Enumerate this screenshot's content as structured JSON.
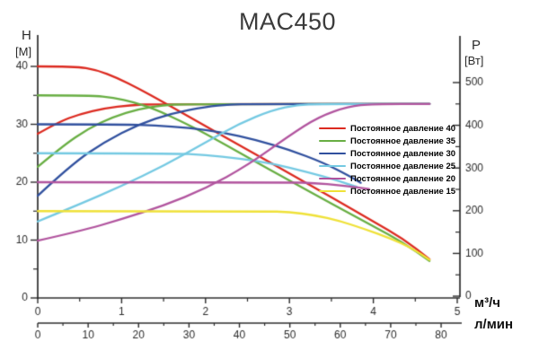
{
  "chart_data": {
    "type": "line",
    "title": "MAC450",
    "grid": false,
    "legend_position": "right-center",
    "power_limit_w": 450,
    "left_axis": {
      "label": "H",
      "unit": "[M]",
      "min": 0,
      "max": 40,
      "major_ticks": [
        0,
        10,
        20,
        30,
        40
      ],
      "minor_ticks": [
        5,
        15,
        25,
        35
      ]
    },
    "right_axis": {
      "label": "P",
      "unit": "[Вт]",
      "min": 0,
      "max": 500,
      "major_ticks": [
        0,
        100,
        200,
        300,
        400,
        500
      ],
      "minor_ticks": [
        50,
        150,
        250,
        350,
        450
      ]
    },
    "x_axis_primary": {
      "label": "м³/ч",
      "min": 0,
      "max": 5,
      "major_ticks": [
        0,
        1,
        2,
        3,
        4,
        5
      ],
      "minor_step": 0.5
    },
    "x_axis_secondary": {
      "label": "л/мин",
      "min": 0,
      "max": 80,
      "major_ticks": [
        0,
        10,
        20,
        30,
        40,
        50,
        60,
        70,
        80
      ],
      "minor_step": 5
    },
    "series": [
      {
        "name": "Постоянное давление 40",
        "pressure_setting_m": 40,
        "color": "#dc2a20",
        "h_curve": [
          [
            0,
            40
          ],
          [
            0.45,
            40
          ],
          [
            0.7,
            39.4
          ],
          [
            0.95,
            38.0
          ],
          [
            1.2,
            36.2
          ],
          [
            1.5,
            33.8
          ],
          [
            2.0,
            29.7
          ],
          [
            2.5,
            25.6
          ],
          [
            3.0,
            21.5
          ],
          [
            3.5,
            17.4
          ],
          [
            4.0,
            13.2
          ],
          [
            4.35,
            10.3
          ],
          [
            4.67,
            6.7
          ]
        ],
        "p_curve": [
          [
            0,
            380
          ],
          [
            0.25,
            408
          ],
          [
            0.5,
            426
          ],
          [
            0.8,
            440
          ],
          [
            1.1,
            447
          ],
          [
            1.4,
            450
          ],
          [
            4.67,
            450
          ]
        ]
      },
      {
        "name": "Постоянное давление 35",
        "pressure_setting_m": 35,
        "color": "#68ae43",
        "h_curve": [
          [
            0,
            35
          ],
          [
            0.65,
            35
          ],
          [
            0.9,
            34.6
          ],
          [
            1.15,
            33.8
          ],
          [
            1.4,
            32.6
          ],
          [
            1.7,
            30.6
          ],
          [
            2.0,
            28.4
          ],
          [
            2.5,
            24.3
          ],
          [
            3.0,
            20.3
          ],
          [
            3.5,
            16.3
          ],
          [
            4.0,
            12.4
          ],
          [
            4.35,
            9.6
          ],
          [
            4.67,
            6.4
          ]
        ],
        "p_curve": [
          [
            0,
            303
          ],
          [
            0.3,
            352
          ],
          [
            0.6,
            392
          ],
          [
            0.9,
            420
          ],
          [
            1.2,
            438
          ],
          [
            1.5,
            447
          ],
          [
            1.75,
            450
          ],
          [
            4.67,
            450
          ]
        ]
      },
      {
        "name": "Постоянное давление 30",
        "pressure_setting_m": 30,
        "color": "#30509e",
        "h_curve": [
          [
            0,
            30
          ],
          [
            1.0,
            30
          ],
          [
            1.4,
            29.8
          ],
          [
            1.8,
            29.4
          ],
          [
            2.2,
            28.6
          ],
          [
            2.6,
            27.3
          ],
          [
            3.0,
            25.6
          ],
          [
            3.4,
            23.4
          ],
          [
            3.7,
            21.2
          ],
          [
            3.85,
            19.9
          ]
        ],
        "p_curve": [
          [
            0,
            235
          ],
          [
            0.4,
            308
          ],
          [
            0.8,
            362
          ],
          [
            1.2,
            402
          ],
          [
            1.6,
            428
          ],
          [
            2.0,
            443
          ],
          [
            2.3,
            449
          ],
          [
            2.55,
            450
          ],
          [
            4.67,
            450
          ]
        ]
      },
      {
        "name": "Постоянное давление 25",
        "pressure_setting_m": 25,
        "color": "#74c9e2",
        "h_curve": [
          [
            0,
            25
          ],
          [
            1.6,
            25
          ],
          [
            2.0,
            24.7
          ],
          [
            2.4,
            24.1
          ],
          [
            2.8,
            23.2
          ],
          [
            3.2,
            21.8
          ],
          [
            3.55,
            20.4
          ],
          [
            3.8,
            19.2
          ]
        ],
        "p_curve": [
          [
            0,
            175
          ],
          [
            0.5,
            215
          ],
          [
            1.0,
            258
          ],
          [
            1.5,
            305
          ],
          [
            2.0,
            360
          ],
          [
            2.4,
            404
          ],
          [
            2.8,
            436
          ],
          [
            3.1,
            448
          ],
          [
            3.35,
            450
          ],
          [
            4.67,
            450
          ]
        ]
      },
      {
        "name": "Постоянное давление 20",
        "pressure_setting_m": 20,
        "color": "#b1549e",
        "h_curve": [
          [
            0,
            20
          ],
          [
            3.0,
            20
          ],
          [
            3.3,
            19.85
          ],
          [
            3.6,
            19.5
          ],
          [
            3.95,
            18.8
          ]
        ],
        "p_curve": [
          [
            0,
            130
          ],
          [
            0.5,
            152
          ],
          [
            1.0,
            180
          ],
          [
            1.5,
            212
          ],
          [
            2.0,
            252
          ],
          [
            2.5,
            306
          ],
          [
            3.0,
            376
          ],
          [
            3.35,
            420
          ],
          [
            3.7,
            444
          ],
          [
            4.0,
            450
          ],
          [
            4.67,
            450
          ]
        ]
      },
      {
        "name": "Постоянное давление 15",
        "pressure_setting_m": 15,
        "color": "#efe138",
        "h_curve": [
          [
            0,
            15
          ],
          [
            2.7,
            15
          ],
          [
            3.0,
            14.85
          ],
          [
            3.3,
            14.3
          ],
          [
            3.6,
            13.3
          ],
          [
            3.9,
            11.9
          ],
          [
            4.2,
            10.3
          ],
          [
            4.45,
            8.7
          ],
          [
            4.67,
            6.6
          ]
        ]
      }
    ]
  }
}
